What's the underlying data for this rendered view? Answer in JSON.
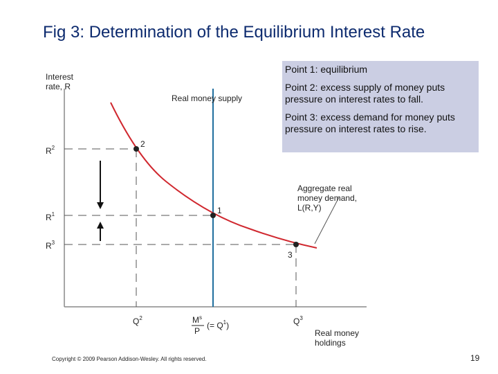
{
  "title": "Fig 3: Determination of the Equilibrium Interest Rate",
  "notes": [
    "Point 1: equilibrium",
    "Point 2: excess supply of money puts pressure on interest rates to fall.",
    "Point 3: excess demand for money puts pressure on interest rates to rise."
  ],
  "diagram": {
    "y_axis_label": [
      "Interest",
      "rate, R"
    ],
    "x_axis_label": [
      "Real money",
      "holdings"
    ],
    "supply_label": "Real money supply",
    "demand_label": [
      "Aggregate real",
      "money demand,",
      "L(R,Y)"
    ],
    "y_ticks": [
      {
        "base": "R",
        "sup": "2"
      },
      {
        "base": "R",
        "sup": "1"
      },
      {
        "base": "R",
        "sup": "3"
      }
    ],
    "points": [
      "2",
      "1",
      "3"
    ],
    "x_ticks": [
      {
        "base": "Q",
        "sup": "2"
      },
      {
        "num": "M",
        "num_sup": "s",
        "den": "P",
        "rest": "(= Q",
        "rest_sup": "1",
        "close": ")"
      },
      {
        "base": "Q",
        "sup": "3"
      }
    ]
  },
  "footer": {
    "copyright": "Copyright © 2009 Pearson Addison-Wesley. All rights reserved.",
    "page": "19"
  }
}
